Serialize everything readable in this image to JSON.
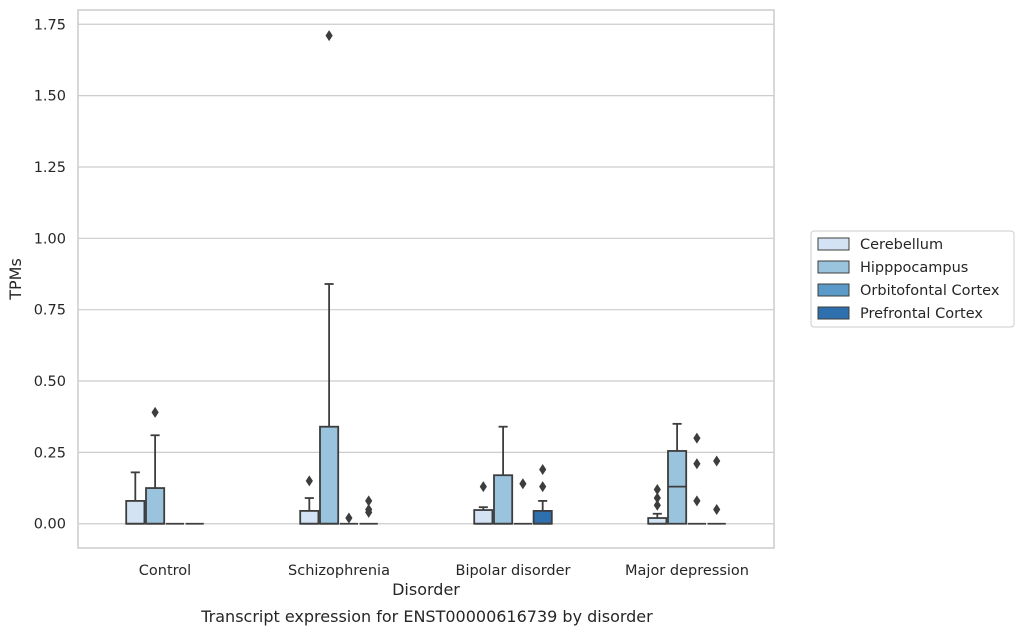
{
  "chart_data": {
    "type": "box",
    "title": "Transcript expression for ENST00000616739 by disorder",
    "xlabel": "Disorder",
    "ylabel": "TPMs",
    "ylim": [
      -0.085,
      1.8
    ],
    "yticks": [
      "0.00",
      "0.25",
      "0.50",
      "0.75",
      "1.00",
      "1.25",
      "1.50",
      "1.75"
    ],
    "grid": true,
    "legend_position": "right",
    "categories": [
      "Control",
      "Schizophrenia",
      "Bipolar disorder",
      "Major depression"
    ],
    "series": [
      {
        "name": "Cerebellum",
        "color": "#d3e3f3",
        "boxes": [
          {
            "q1": 0,
            "median": 0,
            "q3": 0.08,
            "whisker_low": 0,
            "whisker_high": 0.18,
            "outliers": []
          },
          {
            "q1": 0,
            "median": 0,
            "q3": 0.045,
            "whisker_low": 0,
            "whisker_high": 0.09,
            "outliers": [
              0.15
            ]
          },
          {
            "q1": 0,
            "median": 0,
            "q3": 0.048,
            "whisker_low": 0,
            "whisker_high": 0.058,
            "outliers": [
              0.13
            ]
          },
          {
            "q1": 0,
            "median": 0,
            "q3": 0.02,
            "whisker_low": 0,
            "whisker_high": 0.035,
            "outliers": [
              0.065,
              0.09,
              0.12
            ]
          }
        ]
      },
      {
        "name": "Hipppocampus",
        "color": "#9ac4de",
        "boxes": [
          {
            "q1": 0,
            "median": 0,
            "q3": 0.125,
            "whisker_low": 0,
            "whisker_high": 0.31,
            "outliers": [
              0.39
            ]
          },
          {
            "q1": 0,
            "median": 0,
            "q3": 0.34,
            "whisker_low": 0,
            "whisker_high": 0.84,
            "outliers": [
              1.71
            ]
          },
          {
            "q1": 0,
            "median": 0,
            "q3": 0.17,
            "whisker_low": 0,
            "whisker_high": 0.34,
            "outliers": []
          },
          {
            "q1": 0,
            "median": 0.13,
            "q3": 0.255,
            "whisker_low": 0,
            "whisker_high": 0.35,
            "outliers": []
          }
        ]
      },
      {
        "name": "Orbitofontal Cortex",
        "color": "#5b9ac8",
        "boxes": [
          {
            "q1": 0,
            "median": 0,
            "q3": 0,
            "whisker_low": 0,
            "whisker_high": 0,
            "outliers": []
          },
          {
            "q1": 0,
            "median": 0,
            "q3": 0,
            "whisker_low": 0,
            "whisker_high": 0,
            "outliers": [
              0.02
            ]
          },
          {
            "q1": 0,
            "median": 0,
            "q3": 0,
            "whisker_low": 0,
            "whisker_high": 0,
            "outliers": [
              0.14
            ]
          },
          {
            "q1": 0,
            "median": 0,
            "q3": 0,
            "whisker_low": 0,
            "whisker_high": 0,
            "outliers": [
              0.08,
              0.21,
              0.3
            ]
          }
        ]
      },
      {
        "name": "Prefrontal Cortex",
        "color": "#2e6fae",
        "boxes": [
          {
            "q1": 0,
            "median": 0,
            "q3": 0,
            "whisker_low": 0,
            "whisker_high": 0,
            "outliers": []
          },
          {
            "q1": 0,
            "median": 0,
            "q3": 0,
            "whisker_low": 0,
            "whisker_high": 0,
            "outliers": [
              0.04,
              0.05,
              0.08
            ]
          },
          {
            "q1": 0,
            "median": 0,
            "q3": 0.045,
            "whisker_low": 0,
            "whisker_high": 0.08,
            "outliers": [
              0.13,
              0.19
            ]
          },
          {
            "q1": 0,
            "median": 0,
            "q3": 0,
            "whisker_low": 0,
            "whisker_high": 0,
            "outliers": [
              0.05,
              0.22
            ]
          }
        ]
      }
    ]
  }
}
